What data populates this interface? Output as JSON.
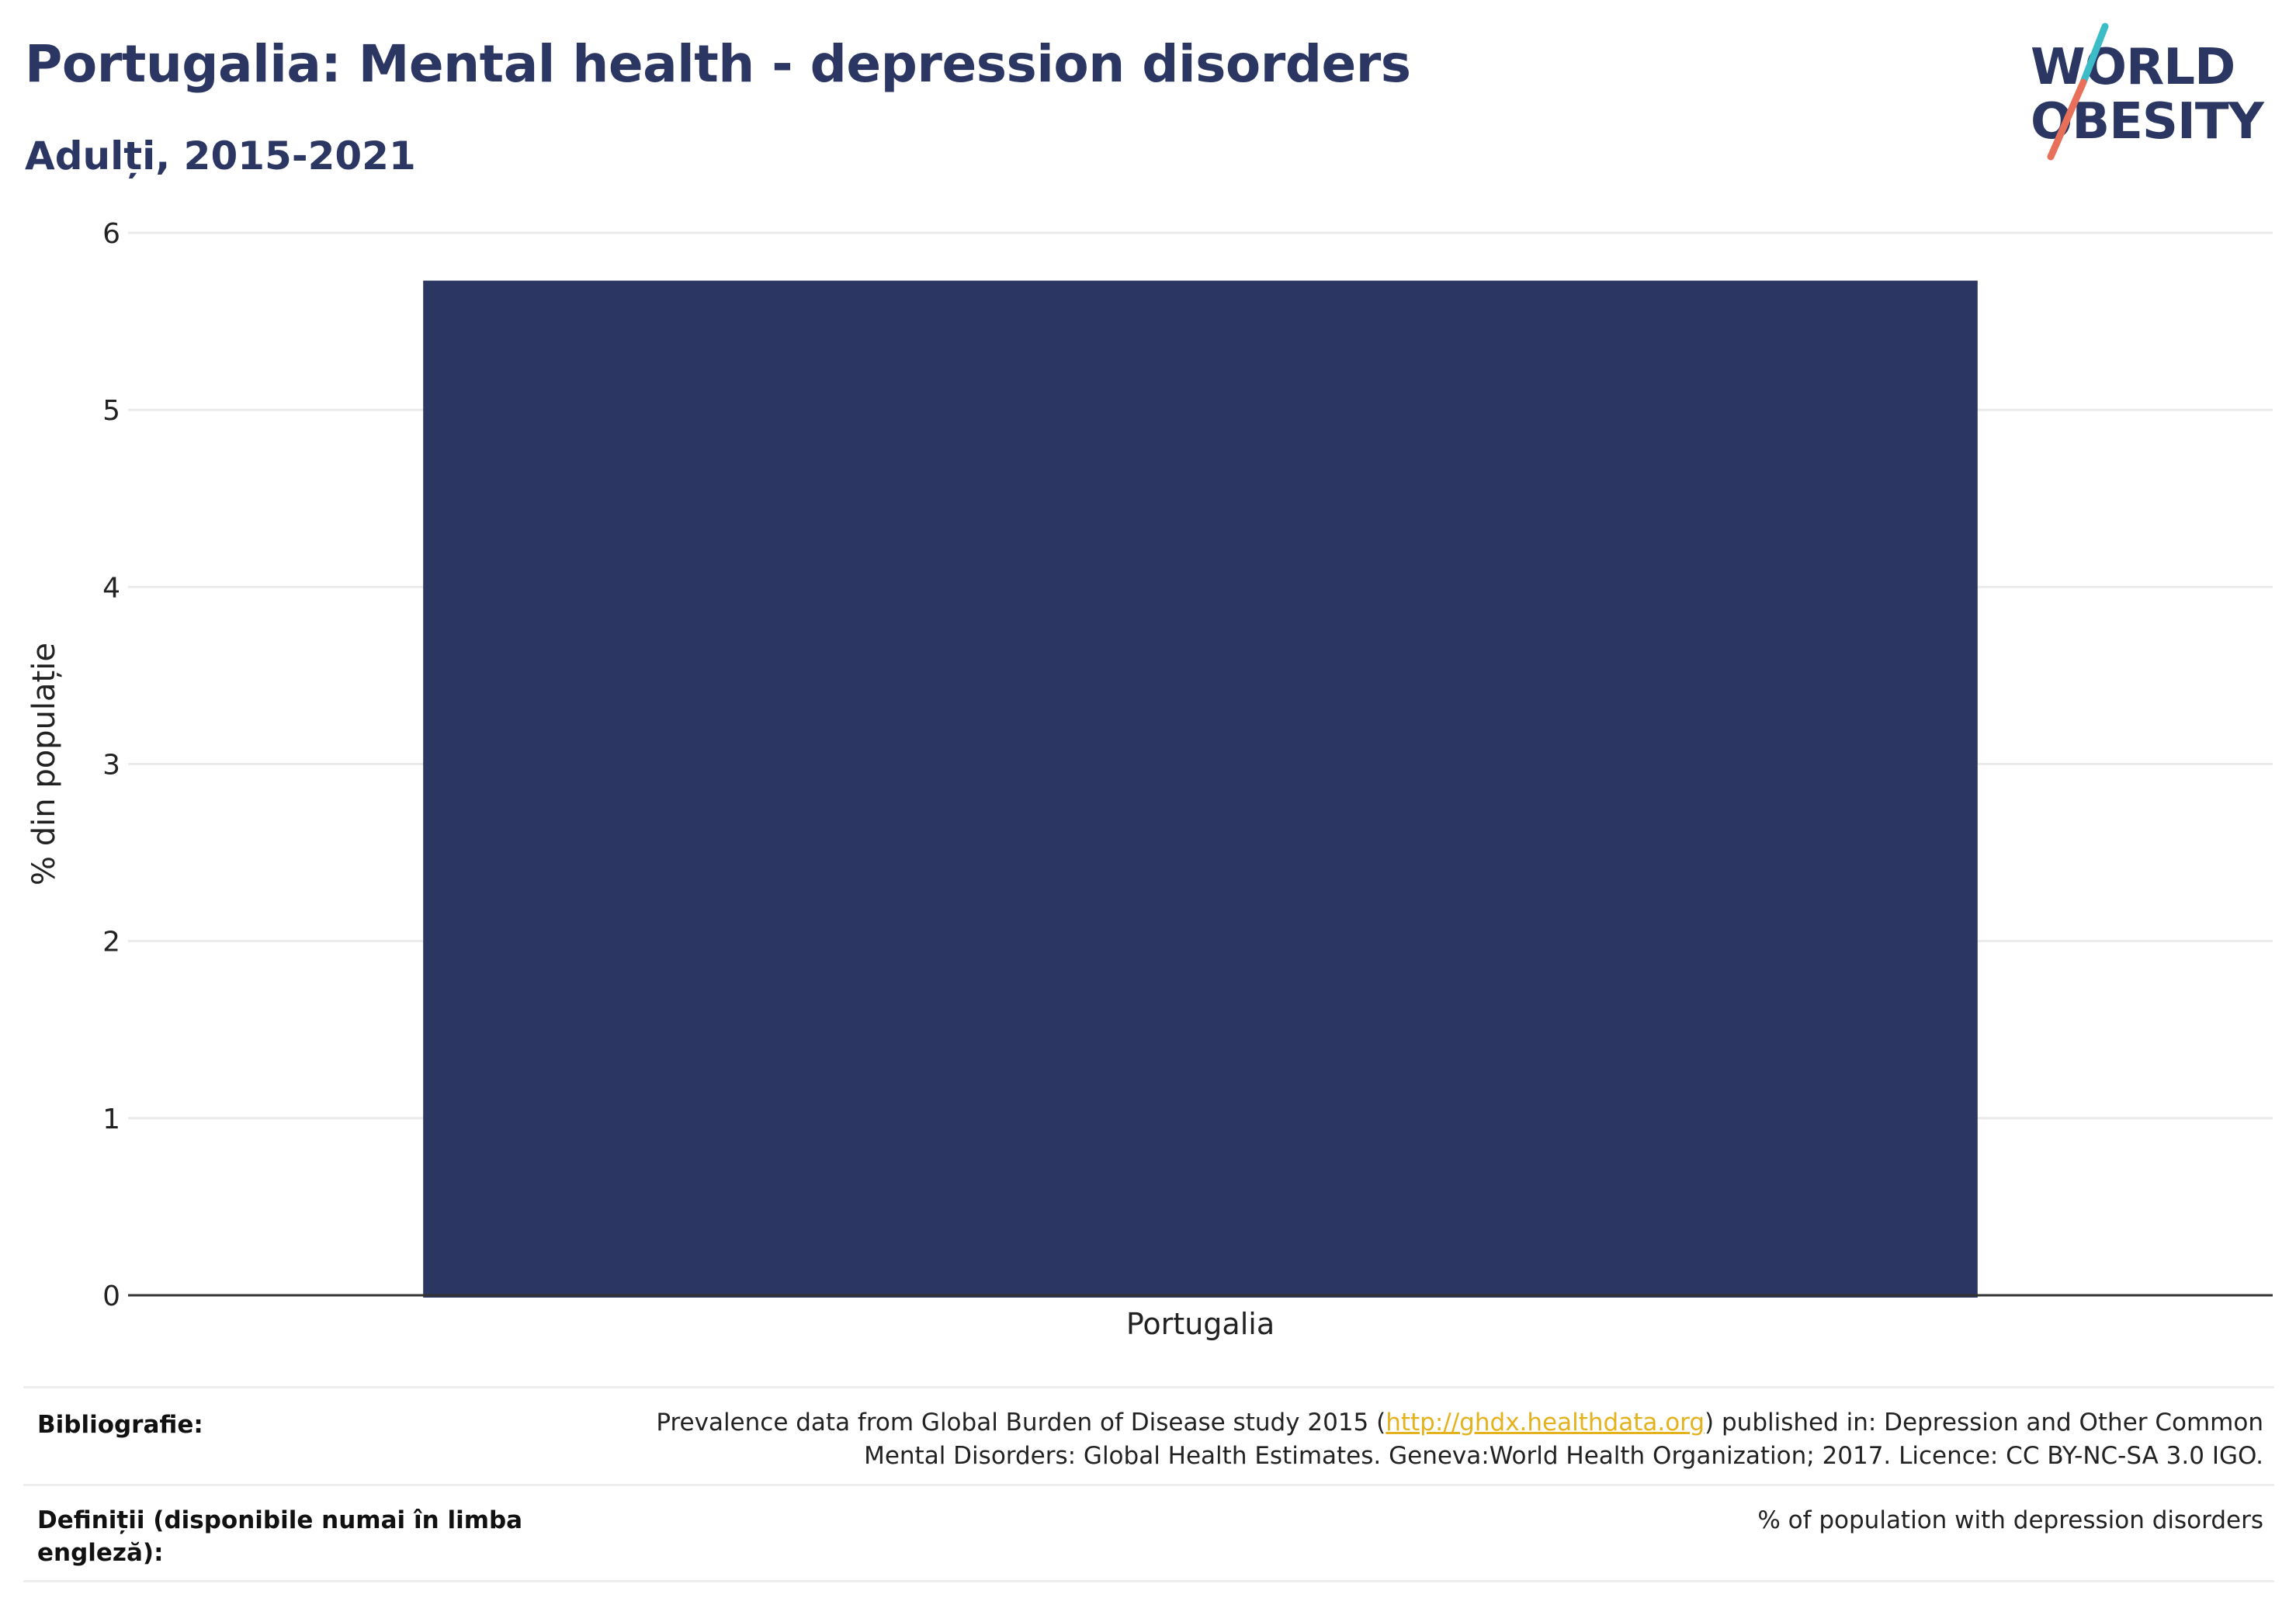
{
  "header": {
    "title": "Portugalia: Mental health - depression disorders",
    "subtitle": "Adulți, 2015-2021"
  },
  "logo": {
    "line1": "WORLD",
    "line2": "OBESITY",
    "colors": {
      "text": "#2b3663",
      "slash_top": "#3bbcc7",
      "slash_bottom": "#e8705a"
    }
  },
  "chart_data": {
    "type": "bar",
    "categories": [
      "Portugalia"
    ],
    "values": [
      5.73
    ],
    "ylabel": "% din populație",
    "xlabel": "",
    "ylim": [
      0,
      6
    ],
    "yticks": [
      0,
      1,
      2,
      3,
      4,
      5,
      6
    ],
    "grid": true,
    "colors": {
      "bar": "#2b3663",
      "grid": "#ebebeb",
      "axis": "#333333"
    }
  },
  "footer": {
    "bibliography_label": "Bibliografie:",
    "bibliography_text_before": "Prevalence data from Global Burden of Disease study 2015 (",
    "bibliography_link": "http://ghdx.healthdata.org",
    "bibliography_text_after": ") published in: Depression and Other Common",
    "bibliography_line2": "Mental Disorders: Global Health Estimates. Geneva:World Health Organization; 2017. Licence: CC BY-NC-SA 3.0 IGO.",
    "definitions_label_line1": "Definiții (disponibile numai în limba",
    "definitions_label_line2": "engleză):",
    "definitions_text": "% of population with depression disorders"
  }
}
